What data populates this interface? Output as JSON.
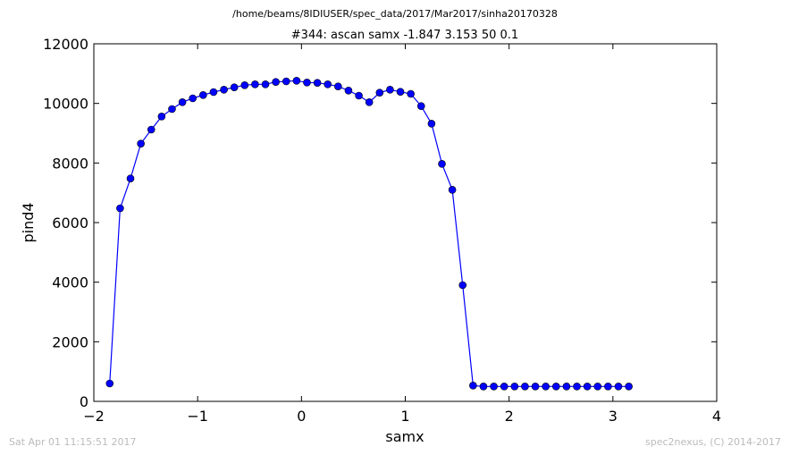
{
  "header": {
    "path": "/home/beams/8IDIUSER/spec_data/2017/Mar2017/sinha20170328"
  },
  "footer": {
    "timestamp": "Sat Apr 01 11:15:51 2017",
    "credit": "spec2nexus, (C) 2014-2017"
  },
  "chart_data": {
    "type": "line",
    "title": "#344: ascan  samx -1.847 3.153  50 0.1",
    "xlabel": "samx",
    "ylabel": "pind4",
    "xlim": [
      -2,
      4
    ],
    "ylim": [
      0,
      12000
    ],
    "x_ticks": [
      -2,
      -1,
      0,
      1,
      2,
      3,
      4
    ],
    "y_ticks": [
      0,
      2000,
      4000,
      6000,
      8000,
      10000,
      12000
    ],
    "x_tick_labels": [
      "−2",
      "−1",
      "0",
      "1",
      "2",
      "3",
      "4"
    ],
    "y_tick_labels": [
      "0",
      "2000",
      "4000",
      "6000",
      "8000",
      "10000",
      "12000"
    ],
    "grid": false,
    "line_color": "#0000ff",
    "marker": "circle",
    "series": [
      {
        "x": [
          -1.847,
          -1.747,
          -1.647,
          -1.547,
          -1.447,
          -1.347,
          -1.247,
          -1.147,
          -1.047,
          -0.947,
          -0.847,
          -0.747,
          -0.647,
          -0.547,
          -0.447,
          -0.347,
          -0.247,
          -0.147,
          -0.047,
          0.053,
          0.153,
          0.253,
          0.353,
          0.453,
          0.553,
          0.653,
          0.753,
          0.853,
          0.953,
          1.053,
          1.153,
          1.253,
          1.353,
          1.453,
          1.553,
          1.653,
          1.753,
          1.853,
          1.953,
          2.053,
          2.153,
          2.253,
          2.353,
          2.453,
          2.553,
          2.653,
          2.753,
          2.853,
          2.953,
          3.053,
          3.153
        ],
        "y": [
          600,
          6480,
          7480,
          8650,
          9120,
          9560,
          9810,
          10040,
          10170,
          10280,
          10380,
          10460,
          10540,
          10610,
          10640,
          10640,
          10720,
          10740,
          10760,
          10700,
          10690,
          10640,
          10570,
          10430,
          10260,
          10040,
          10360,
          10460,
          10390,
          10320,
          9910,
          9320,
          7970,
          7100,
          3900,
          530,
          500,
          500,
          500,
          500,
          500,
          500,
          500,
          500,
          500,
          500,
          500,
          500,
          500,
          500,
          500
        ]
      }
    ]
  }
}
